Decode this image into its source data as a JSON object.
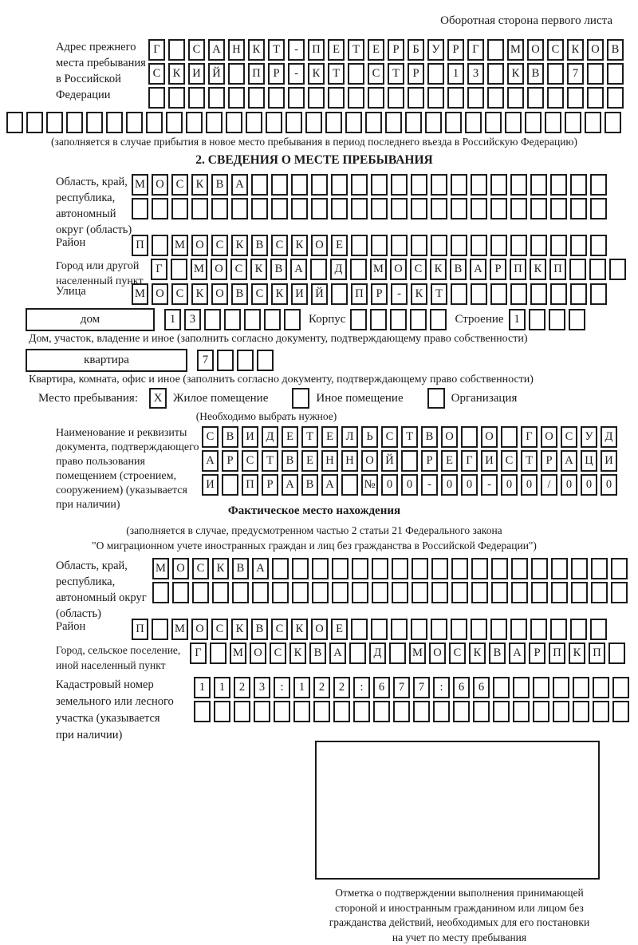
{
  "page": {
    "header_note": "Оборотная сторона первого листа"
  },
  "colors": {
    "ink": "#1a1a1a",
    "paper": "#ffffff"
  },
  "prev_address": {
    "label": [
      "Адрес прежнего",
      "места пребывания",
      "в Российской",
      "Федерации"
    ],
    "rows": [
      [
        "Г",
        "",
        "С",
        "А",
        "Н",
        "К",
        "Т",
        "-",
        "П",
        "Е",
        "Т",
        "Е",
        "Р",
        "Б",
        "У",
        "Р",
        "Г",
        "",
        "М",
        "О",
        "С",
        "К",
        "О",
        "В"
      ],
      [
        "С",
        "К",
        "И",
        "Й",
        "",
        "П",
        "Р",
        "-",
        "К",
        "Т",
        "",
        "С",
        "Т",
        "Р",
        "",
        "1",
        "3",
        "",
        "К",
        "В",
        "",
        "7",
        "",
        ""
      ],
      [
        "",
        "",
        "",
        "",
        "",
        "",
        "",
        "",
        "",
        "",
        "",
        "",
        "",
        "",
        "",
        "",
        "",
        "",
        "",
        "",
        "",
        "",
        "",
        ""
      ]
    ],
    "overflow_row": [
      "",
      "",
      "",
      "",
      "",
      "",
      "",
      "",
      "",
      "",
      "",
      "",
      "",
      "",
      "",
      "",
      "",
      "",
      "",
      "",
      "",
      "",
      "",
      "",
      "",
      "",
      "",
      "",
      "",
      "",
      ""
    ],
    "note": "(заполняется в случае прибытия в новое место пребывания в период последнего въезда в Российскую Федерацию)"
  },
  "section_stay": {
    "title": "2. СВЕДЕНИЯ О МЕСТЕ ПРЕБЫВАНИЯ",
    "region": {
      "label": [
        "Область, край,",
        "республика,",
        "автономный",
        "округ (область)"
      ],
      "rows": [
        [
          "М",
          "О",
          "С",
          "К",
          "В",
          "А",
          "",
          "",
          "",
          "",
          "",
          "",
          "",
          "",
          "",
          "",
          "",
          "",
          "",
          "",
          "",
          "",
          "",
          ""
        ],
        [
          "",
          "",
          "",
          "",
          "",
          "",
          "",
          "",
          "",
          "",
          "",
          "",
          "",
          "",
          "",
          "",
          "",
          "",
          "",
          "",
          "",
          "",
          "",
          ""
        ]
      ]
    },
    "district": {
      "label": "Район",
      "row": [
        "П",
        "",
        "М",
        "О",
        "С",
        "К",
        "В",
        "С",
        "К",
        "О",
        "Е",
        "",
        "",
        "",
        "",
        "",
        "",
        "",
        "",
        "",
        "",
        "",
        "",
        ""
      ]
    },
    "city": {
      "label": [
        "Город или другой",
        "населенный пункт"
      ],
      "row": [
        "Г",
        "",
        "М",
        "О",
        "С",
        "К",
        "В",
        "А",
        "",
        "Д",
        "",
        "М",
        "О",
        "С",
        "К",
        "В",
        "А",
        "Р",
        "П",
        "К",
        "П",
        "",
        "",
        ""
      ]
    },
    "street": {
      "label": "Улица",
      "row": [
        "М",
        "О",
        "С",
        "К",
        "О",
        "В",
        "С",
        "К",
        "И",
        "Й",
        "",
        "П",
        "Р",
        "-",
        "К",
        "Т",
        "",
        "",
        "",
        "",
        "",
        "",
        "",
        ""
      ]
    },
    "house": {
      "box_label": "дом",
      "cells": [
        "1",
        "3",
        "",
        "",
        "",
        "",
        ""
      ],
      "korpus_label": "Корпус",
      "korpus_cells": [
        "",
        "",
        "",
        "",
        ""
      ],
      "stroenie_label": "Строение",
      "stroenie_cells": [
        "1",
        "",
        "",
        ""
      ]
    },
    "house_note": "Дом, участок, владение и иное (заполнить согласно документу, подтверждающему право собственности)",
    "apartment": {
      "box_label": "квартира",
      "cells": [
        "7",
        "",
        "",
        ""
      ]
    },
    "apartment_note": "Квартира, комната, офис и иное (заполнить согласно документу, подтверждающему право собственности)",
    "stay": {
      "label": "Место пребывания:",
      "options": [
        {
          "mark": "X",
          "label": "Жилое помещение"
        },
        {
          "mark": "",
          "label": "Иное помещение"
        },
        {
          "mark": "",
          "label": "Организация"
        }
      ],
      "note": "(Необходимо выбрать нужное)"
    },
    "document": {
      "label": [
        "Наименование и реквизиты",
        "документа, подтверждающего",
        "право пользования",
        "помещением (строением,",
        "сооружением) (указывается",
        "при наличии)"
      ],
      "rows": [
        [
          "С",
          "В",
          "И",
          "Д",
          "Е",
          "Т",
          "Е",
          "Л",
          "Ь",
          "С",
          "Т",
          "В",
          "О",
          "",
          "О",
          "",
          "Г",
          "О",
          "С",
          "У",
          "Д"
        ],
        [
          "А",
          "Р",
          "С",
          "Т",
          "В",
          "Е",
          "Н",
          "Н",
          "О",
          "Й",
          "",
          "Р",
          "Е",
          "Г",
          "И",
          "С",
          "Т",
          "Р",
          "А",
          "Ц",
          "И"
        ],
        [
          "И",
          "",
          "П",
          "Р",
          "А",
          "В",
          "А",
          "",
          "№",
          "0",
          "0",
          "-",
          "0",
          "0",
          "-",
          "0",
          "0",
          "/",
          "0",
          "0",
          "0"
        ]
      ]
    }
  },
  "section_actual": {
    "title": "Фактическое место нахождения",
    "note": [
      "(заполняется в случае, предусмотренном частью 2 статьи 21 Федерального закона",
      "\"О миграционном учете иностранных граждан и лиц без гражданства в Российской Федерации\")"
    ],
    "region": {
      "label": [
        "Область, край,",
        "республика,",
        "автономный округ",
        "(область)"
      ],
      "rows": [
        [
          "М",
          "О",
          "С",
          "К",
          "В",
          "А",
          "",
          "",
          "",
          "",
          "",
          "",
          "",
          "",
          "",
          "",
          "",
          "",
          "",
          "",
          "",
          "",
          "",
          ""
        ],
        [
          "",
          "",
          "",
          "",
          "",
          "",
          "",
          "",
          "",
          "",
          "",
          "",
          "",
          "",
          "",
          "",
          "",
          "",
          "",
          "",
          "",
          "",
          "",
          ""
        ]
      ]
    },
    "district": {
      "label": "Район",
      "row": [
        "П",
        "",
        "М",
        "О",
        "С",
        "К",
        "В",
        "С",
        "К",
        "О",
        "Е",
        "",
        "",
        "",
        "",
        "",
        "",
        "",
        "",
        "",
        "",
        "",
        "",
        ""
      ]
    },
    "city": {
      "label": [
        "Город, сельское поселение,",
        "иной населенный пункт"
      ],
      "row": [
        "Г",
        "",
        "М",
        "О",
        "С",
        "К",
        "В",
        "А",
        "",
        "Д",
        "",
        "М",
        "О",
        "С",
        "К",
        "В",
        "А",
        "Р",
        "П",
        "К",
        "П",
        ""
      ]
    },
    "cadastral": {
      "label": [
        "Кадастровый номер",
        "земельного или лесного",
        "участка (указывается",
        "при наличии)"
      ],
      "rows": [
        [
          "1",
          "1",
          "2",
          "3",
          ":",
          "1",
          "2",
          "2",
          ":",
          "6",
          "7",
          "7",
          ":",
          "6",
          "6",
          "",
          "",
          "",
          "",
          "",
          "",
          ""
        ],
        [
          "",
          "",
          "",
          "",
          "",
          "",
          "",
          "",
          "",
          "",
          "",
          "",
          "",
          "",
          "",
          "",
          "",
          "",
          "",
          "",
          "",
          ""
        ]
      ]
    },
    "stamp_note": [
      "Отметка о подтверждении выполнения принимающей",
      "стороной и иностранным гражданином или лицом без",
      "гражданства действий, необходимых для его постановки",
      "на учет по месту пребывания"
    ]
  }
}
